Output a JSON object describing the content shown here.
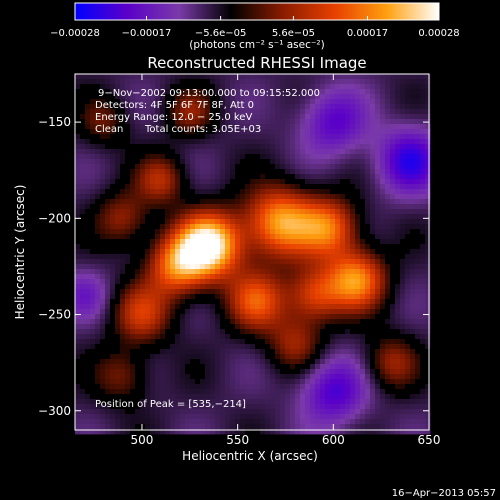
{
  "chart_data": {
    "type": "heatmap",
    "title": "Reconstructed RHESSI Image",
    "xlabel": "Heliocentric X (arcsec)",
    "ylabel": "Heliocentric Y (arcsec)",
    "xlim": [
      465,
      650
    ],
    "ylim": [
      -310,
      -125
    ],
    "x_ticks": [
      500,
      550,
      600,
      650
    ],
    "x_tick_labels": [
      "500",
      "550",
      "600",
      "650"
    ],
    "y_ticks": [
      -150,
      -200,
      -250,
      -300
    ],
    "y_tick_labels": [
      "−150",
      "−200",
      "−250",
      "−300"
    ],
    "colorbar": {
      "range": [
        -0.00028,
        0.00028
      ],
      "ticks": [
        -0.00028,
        -0.00017,
        -5.6e-05,
        5.6e-05,
        0.00017,
        0.00028
      ],
      "tick_labels": [
        "−0.00028",
        "−0.00017",
        "−5.6e−05",
        "5.6e−05",
        "0.00017",
        "0.00028"
      ],
      "unit_label": "(photons cm⁻² s⁻¹ asec⁻²)",
      "colors": [
        "#0000ff",
        "#5a00c8",
        "#7a3aa8",
        "#000000",
        "#8a1c00",
        "#e84000",
        "#ffa010",
        "#ffffff"
      ]
    },
    "annotations": {
      "time_range": "9−Nov−2002 09:13:00.000 to 09:15:52.000",
      "detectors": "Detectors: 4F 5F 6F 7F 8F, Att 0",
      "energy_range": "Energy Range: 12.0 − 25.0 keV",
      "clean_label": "Clean",
      "total_counts": "Total counts: 3.05E+03",
      "peak_position": "Position of Peak = [535,−214]"
    },
    "peak": [
      535,
      -214
    ],
    "sources": [
      {
        "x": 535,
        "y": -214,
        "amp": 1.0,
        "sigma": 12
      },
      {
        "x": 518,
        "y": -225,
        "amp": 0.6,
        "sigma": 11
      },
      {
        "x": 572,
        "y": -202,
        "amp": 0.75,
        "sigma": 13
      },
      {
        "x": 598,
        "y": -205,
        "amp": 0.6,
        "sigma": 11
      },
      {
        "x": 612,
        "y": -232,
        "amp": 0.7,
        "sigma": 11
      },
      {
        "x": 590,
        "y": -240,
        "amp": 0.5,
        "sigma": 10
      },
      {
        "x": 560,
        "y": -243,
        "amp": 0.55,
        "sigma": 11
      },
      {
        "x": 500,
        "y": -250,
        "amp": 0.45,
        "sigma": 11
      },
      {
        "x": 490,
        "y": -200,
        "amp": 0.35,
        "sigma": 10
      },
      {
        "x": 510,
        "y": -180,
        "amp": 0.4,
        "sigma": 9
      },
      {
        "x": 490,
        "y": -282,
        "amp": 0.3,
        "sigma": 10
      },
      {
        "x": 630,
        "y": -275,
        "amp": 0.35,
        "sigma": 10
      },
      {
        "x": 580,
        "y": -265,
        "amp": 0.35,
        "sigma": 10
      },
      {
        "x": 525,
        "y": -145,
        "amp": 0.3,
        "sigma": 9
      },
      {
        "x": 480,
        "y": -150,
        "amp": 0.25,
        "sigma": 9
      },
      {
        "x": 600,
        "y": -150,
        "amp": -0.4,
        "sigma": 12
      },
      {
        "x": 640,
        "y": -170,
        "amp": -0.5,
        "sigma": 12
      },
      {
        "x": 600,
        "y": -290,
        "amp": -0.45,
        "sigma": 12
      },
      {
        "x": 470,
        "y": -240,
        "amp": -0.25,
        "sigma": 9
      }
    ],
    "timestamp": "16−Apr−2013 05:57"
  }
}
